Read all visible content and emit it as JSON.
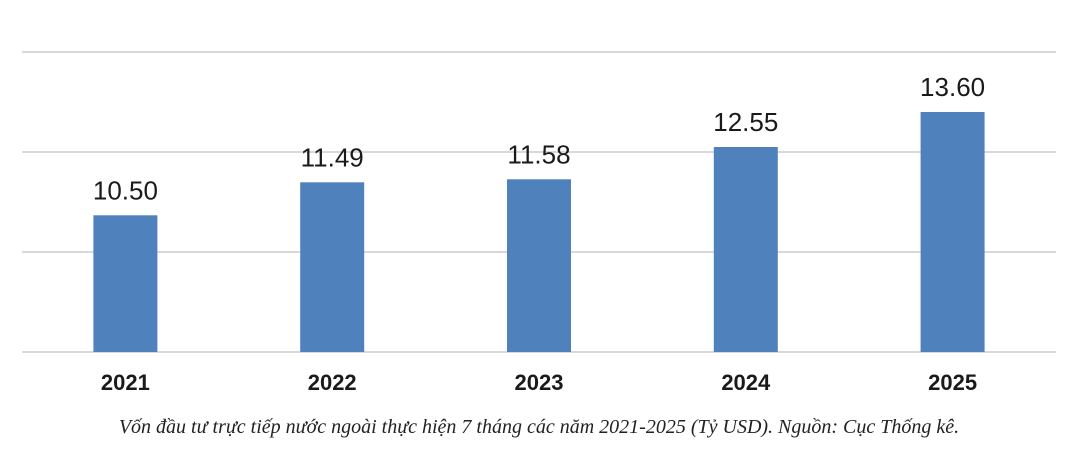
{
  "chart_data": {
    "type": "bar",
    "categories": [
      "2021",
      "2022",
      "2023",
      "2024",
      "2025"
    ],
    "values": [
      10.5,
      11.49,
      11.58,
      12.55,
      13.6
    ],
    "value_labels": [
      "10.50",
      "11.49",
      "11.58",
      "12.55",
      "13.60"
    ],
    "title": "",
    "xlabel": "",
    "ylabel": "",
    "ylim": [
      6.4,
      15.4
    ],
    "gridlines": [
      6.4,
      9.4,
      12.4,
      15.4
    ],
    "grid": true,
    "bar_color": "#4f81bd",
    "grid_color": "#d9d9d9"
  },
  "caption": "Vốn đầu tư trực tiếp nước ngoài thực hiện 7 tháng các năm 2021-2025 (Tỷ USD). Nguồn: Cục Thống kê."
}
